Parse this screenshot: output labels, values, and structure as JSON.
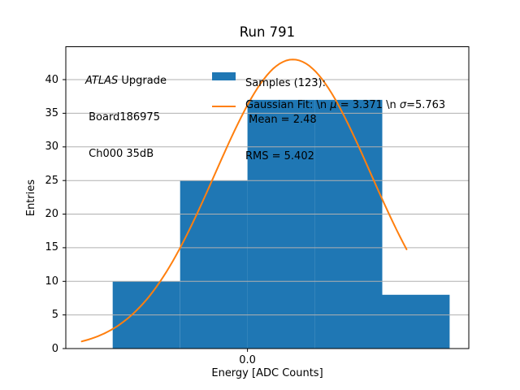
{
  "chart_data": {
    "type": "bar",
    "subtype": "histogram-with-gaussian-fit",
    "title": "Run 791",
    "xlabel": "Energy [ADC Counts]",
    "ylabel": "Entries",
    "bin_edges": [
      -10,
      -5,
      0,
      5,
      10,
      15
    ],
    "counts": [
      10,
      25,
      37,
      37,
      8
    ],
    "bar_color": "#1f77b4",
    "overlay": {
      "type": "gaussian",
      "mu": 3.371,
      "sigma": 5.763,
      "amplitude": 43.0,
      "x_range": [
        -12.3,
        11.8
      ],
      "color": "#ff7f0e"
    },
    "stats": {
      "samples": 123,
      "mean": 2.48,
      "rms": 5.402
    },
    "xlim": [
      -13.48,
      16.42
    ],
    "ylim": [
      0,
      44.9
    ],
    "xticks": [
      {
        "value": 0,
        "label": "0.0"
      }
    ],
    "yticks": [
      0,
      5,
      10,
      15,
      20,
      25,
      30,
      35,
      40
    ],
    "grid": {
      "axis": "y",
      "color": "#b0b0b0"
    },
    "legend_location": "upper center",
    "legend_frame": false
  },
  "annotation": {
    "line1_italic": "ATLAS",
    "line1_rest": " Upgrade",
    "line2": " Board186975",
    "line3": " Ch000 35dB"
  },
  "legend": {
    "samples_title": "Samples (123):",
    "samples_mean": " Mean = 2.48",
    "samples_rms": "RMS = 5.402",
    "gauss_pre": "Gaussian Fit: \\n ",
    "gauss_mu_symbol": "μ",
    "gauss_mu_val": " = 3.371 \\n ",
    "gauss_sigma_symbol": "σ",
    "gauss_sigma_val": "=5.763"
  }
}
